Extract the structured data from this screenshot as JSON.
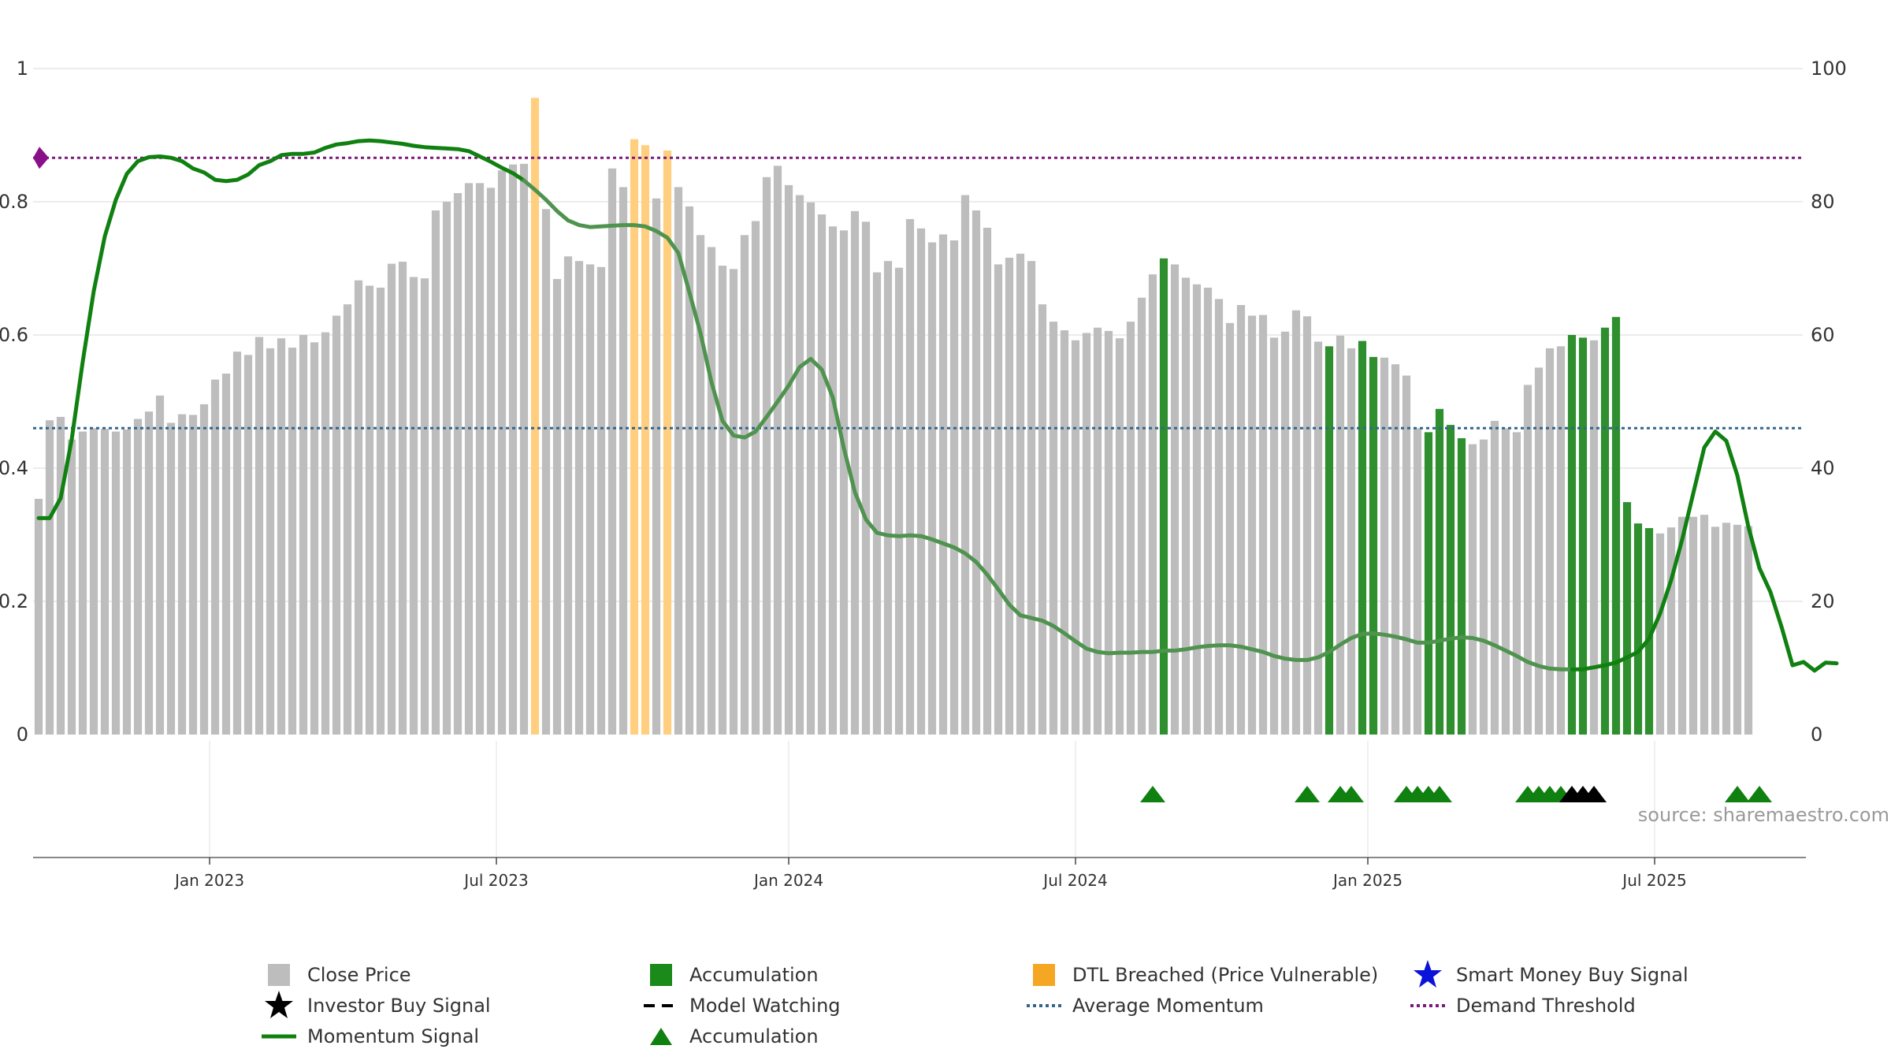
{
  "colors": {
    "close": "#bdbdbd",
    "accumulation": "#2f8f2f",
    "dtl": "#ffcf7f",
    "momentum": "#108010",
    "momentum_faded": "#4f934f",
    "avg": "#33668c",
    "demand": "#7a1a7a",
    "grid": "#e5e5e5",
    "axis": "#888888",
    "black": "#000000",
    "smart": "#0a13d8",
    "triangle": "#108010"
  },
  "source": "source: sharemaestro.com",
  "chart_data": {
    "type": "bar",
    "title": "",
    "xlabel": "",
    "ylabel_left": "",
    "ylabel_right": "",
    "grid": true,
    "legend_position": "bottom",
    "y_left": {
      "range": [
        0,
        1
      ],
      "ticks": [
        "0",
        "0.2",
        "0.4",
        "0.6",
        "0.8",
        "1"
      ]
    },
    "y_right": {
      "range": [
        0,
        100
      ],
      "ticks": [
        "0",
        "20",
        "40",
        "60",
        "80",
        "100"
      ]
    },
    "x_ticks": [
      {
        "label": "Jan 2023",
        "week": 15.5
      },
      {
        "label": "Jul 2023",
        "week": 41.5
      },
      {
        "label": "Jan 2024",
        "week": 68
      },
      {
        "label": "Jul 2024",
        "week": 94
      },
      {
        "label": "Jan 2025",
        "week": 120.5
      },
      {
        "label": "Jul 2025",
        "week": 146.5
      }
    ],
    "week_count": 158,
    "close_price": [
      35.4,
      47.2,
      47.7,
      44.3,
      45.5,
      46.0,
      45.9,
      45.5,
      45.8,
      47.4,
      48.5,
      50.9,
      46.8,
      48.1,
      48.0,
      49.6,
      53.3,
      54.2,
      57.5,
      57.0,
      59.7,
      58.0,
      59.5,
      58.1,
      60.0,
      58.9,
      60.4,
      62.9,
      64.6,
      68.2,
      67.4,
      67.1,
      70.7,
      71.0,
      68.7,
      68.5,
      78.7,
      80.0,
      81.3,
      82.8,
      82.8,
      82.1,
      84.7,
      85.6,
      85.7,
      95.6,
      78.9,
      68.4,
      71.8,
      71.1,
      70.6,
      70.2,
      85.0,
      82.2,
      89.4,
      88.5,
      80.5,
      87.7,
      82.2,
      79.3,
      75.0,
      73.2,
      70.4,
      69.9,
      75.0,
      77.1,
      83.7,
      85.4,
      82.5,
      81.0,
      79.9,
      78.1,
      76.3,
      75.7,
      78.6,
      77.0,
      69.4,
      71.1,
      70.1,
      77.4,
      76.0,
      73.9,
      75.1,
      74.2,
      81.0,
      78.7,
      76.1,
      70.6,
      71.6,
      72.2,
      71.1,
      64.6,
      62.0,
      60.7,
      59.2,
      60.3,
      61.1,
      60.6,
      59.5,
      62.0,
      65.6,
      69.1,
      71.5,
      70.6,
      68.6,
      67.6,
      67.1,
      65.4,
      61.8,
      64.5,
      62.9,
      63.0,
      59.6,
      60.5,
      63.7,
      62.8,
      59.0,
      58.3,
      59.9,
      58.0,
      59.1,
      56.7,
      56.6,
      55.6,
      53.9,
      46.0,
      45.4,
      48.9,
      46.5,
      44.5,
      43.6,
      44.3,
      47.1,
      46.0,
      45.4,
      52.5,
      55.1,
      58.0,
      58.3,
      60.0,
      59.6,
      59.2,
      61.1,
      62.7,
      34.9,
      31.7,
      31.0,
      30.2,
      31.1,
      32.7,
      32.7,
      33.0,
      31.2,
      31.8,
      31.5,
      31.3
    ],
    "bar_state": "NNNNNNNNNNNNNNNNNNNNNNNNNNNNNNNNNNNNNNNNNNNNNDNNNNNNNNDDNDNNNNNNNNNNNNNNNNNNNNNNNNNNNNNNNNNNNNNNNNNNNNANNNNNNNNNNNNNNANNAANNNNAAAANNNNNNNNNAANAAAAANNNNNNNNNNANAN",
    "momentum_signal": [
      32.5,
      32.5,
      35.5,
      44.3,
      56.0,
      66.6,
      74.8,
      80.3,
      84.2,
      86.1,
      86.7,
      86.8,
      86.6,
      86.1,
      85.0,
      84.4,
      83.3,
      83.1,
      83.3,
      84.1,
      85.5,
      86.1,
      87.0,
      87.2,
      87.2,
      87.4,
      88.1,
      88.6,
      88.8,
      89.1,
      89.2,
      89.1,
      88.9,
      88.7,
      88.4,
      88.2,
      88.1,
      88.0,
      87.9,
      87.6,
      86.8,
      86.0,
      85.1,
      84.3,
      83.2,
      81.8,
      80.3,
      78.6,
      77.2,
      76.5,
      76.2,
      76.3,
      76.4,
      76.5,
      76.5,
      76.3,
      75.6,
      74.6,
      72.3,
      66.4,
      60.3,
      52.9,
      47.1,
      44.9,
      44.6,
      45.5,
      47.7,
      50.0,
      52.4,
      55.2,
      56.4,
      54.8,
      50.6,
      43.0,
      36.4,
      32.3,
      30.3,
      29.9,
      29.8,
      29.9,
      29.8,
      29.3,
      28.7,
      28.1,
      27.2,
      25.9,
      24.0,
      21.8,
      19.5,
      17.9,
      17.5,
      17.1,
      16.3,
      15.2,
      14.0,
      12.9,
      12.4,
      12.2,
      12.3,
      12.3,
      12.4,
      12.4,
      12.6,
      12.6,
      12.8,
      13.1,
      13.3,
      13.4,
      13.4,
      13.2,
      12.8,
      12.4,
      11.8,
      11.4,
      11.2,
      11.2,
      11.6,
      12.4,
      13.5,
      14.5,
      15.1,
      15.2,
      15.0,
      14.7,
      14.3,
      13.8,
      13.8,
      14.1,
      14.4,
      14.6,
      14.5,
      14.1,
      13.4,
      12.6,
      11.8,
      10.9,
      10.3,
      9.9,
      9.8,
      9.8,
      9.8,
      10.1,
      10.4,
      10.8,
      11.6,
      12.4,
      14.4,
      18.2,
      23.2,
      29.3,
      36.2,
      43.1,
      45.5,
      44.1,
      38.9,
      31.2,
      25.0,
      21.4,
      16.2,
      10.4,
      10.9,
      9.6,
      10.8,
      10.7
    ],
    "momentum_faded_range": [
      44,
      139
    ],
    "average_momentum": 46.0,
    "demand_threshold": 86.6,
    "accumulation_triangles": [
      101,
      115,
      118,
      119,
      124,
      125,
      126,
      127,
      135,
      136,
      137,
      138,
      154,
      156
    ],
    "investor_buy_signals": [
      139,
      140,
      141
    ],
    "demand_marker_week": 0,
    "legend": [
      {
        "label": "Close Price",
        "symbol": "square",
        "color": "#bdbdbd"
      },
      {
        "label": "Accumulation",
        "symbol": "square",
        "color": "#1a8a1a"
      },
      {
        "label": "DTL Breached (Price Vulnerable)",
        "symbol": "square",
        "color": "#f5a623"
      },
      {
        "label": "Smart Money Buy Signal",
        "symbol": "star",
        "color": "#0a13d8"
      },
      {
        "label": "Investor Buy Signal",
        "symbol": "star",
        "color": "#000000"
      },
      {
        "label": "Model Watching",
        "symbol": "dash",
        "color": "#000000"
      },
      {
        "label": "Average Momentum",
        "symbol": "dot",
        "color": "#33668c"
      },
      {
        "label": "Demand Threshold",
        "symbol": "dot",
        "color": "#7a1a7a"
      },
      {
        "label": "Momentum Signal",
        "symbol": "line",
        "color": "#108010"
      },
      {
        "label": "Accumulation",
        "symbol": "triangle",
        "color": "#108010"
      }
    ]
  }
}
